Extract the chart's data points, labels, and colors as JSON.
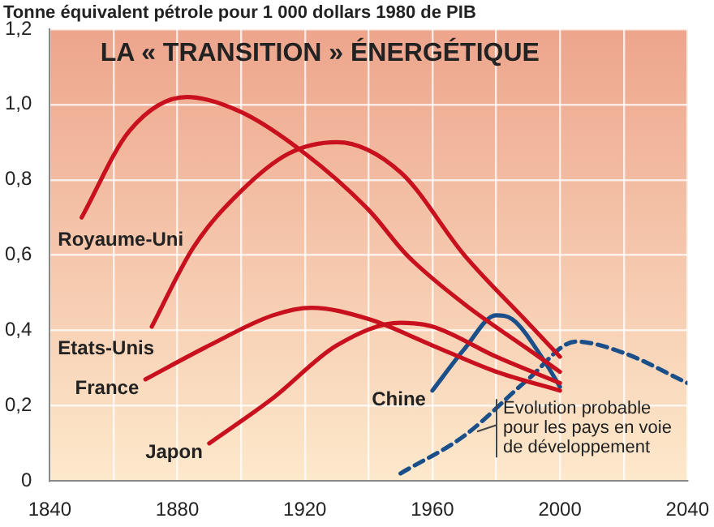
{
  "chart_data": {
    "type": "line",
    "title": "LA « TRANSITION » ÉNERGÉTIQUE",
    "ylabel": "Tonne équivalent pétrole pour 1 000 dollars 1980 de PIB",
    "xlim": [
      1840,
      2040
    ],
    "xticks": [
      1840,
      1880,
      1920,
      1960,
      2000,
      2040
    ],
    "ylim": [
      0,
      1.2
    ],
    "yticks": [
      0,
      {
        "value": 0.2,
        "label": "0,2"
      },
      {
        "value": 0.4,
        "label": "0,4"
      },
      {
        "value": 0.6,
        "label": "0,6"
      },
      {
        "value": 0.8,
        "label": "0,8"
      },
      {
        "value": 1.0,
        "label": "1,0"
      },
      {
        "value": 1.2,
        "label": "1,2"
      }
    ],
    "grid": true,
    "legend": false,
    "marker": "none",
    "series": [
      {
        "name": "Royaume-Uni",
        "color": "#c8101e",
        "x": [
          1850,
          1865,
          1883,
          1900,
          1920,
          1940,
          1952,
          1970,
          1990,
          2000
        ],
        "values": [
          0.7,
          0.93,
          1.02,
          0.98,
          0.87,
          0.72,
          0.6,
          0.47,
          0.35,
          0.29
        ]
      },
      {
        "name": "Etats-Unis",
        "color": "#c8101e",
        "x": [
          1872,
          1885,
          1900,
          1915,
          1930,
          1950,
          1970,
          1990,
          2000
        ],
        "values": [
          0.41,
          0.62,
          0.77,
          0.87,
          0.9,
          0.82,
          0.6,
          0.42,
          0.33
        ]
      },
      {
        "name": "France",
        "color": "#c8101e",
        "x": [
          1870,
          1890,
          1910,
          1922,
          1940,
          1960,
          1980,
          2000
        ],
        "values": [
          0.27,
          0.36,
          0.44,
          0.46,
          0.43,
          0.36,
          0.29,
          0.24
        ]
      },
      {
        "name": "Japon",
        "color": "#c8101e",
        "x": [
          1890,
          1910,
          1930,
          1950,
          1960,
          1980,
          2000
        ],
        "values": [
          0.1,
          0.22,
          0.36,
          0.42,
          0.41,
          0.33,
          0.26
        ]
      },
      {
        "name": "Chine",
        "color": "#1a4f8a",
        "x": [
          1960,
          1970,
          1980,
          1985,
          1995,
          2000
        ],
        "values": [
          0.24,
          0.35,
          0.44,
          0.43,
          0.32,
          0.25
        ]
      },
      {
        "color": "#1a4f8a",
        "line_style": "dashed",
        "x": [
          1950,
          1970,
          1990,
          2005,
          2020,
          2040
        ],
        "values": [
          0.02,
          0.12,
          0.27,
          0.37,
          0.34,
          0.26
        ]
      }
    ],
    "annotations": [
      {
        "text": "Evolution probable pour les pays en voie de développement",
        "x": 1973,
        "y": 0.14
      }
    ]
  }
}
